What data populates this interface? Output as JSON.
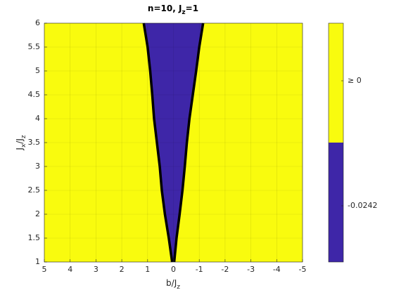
{
  "chart_data": {
    "type": "contour",
    "title": "n=10, J_z=1",
    "xlabel": "b/J_z",
    "ylabel": "J_x/J_z",
    "xlim": [
      5,
      -5
    ],
    "ylim": [
      1,
      6
    ],
    "xticks": [
      5,
      4,
      3,
      2,
      1,
      0,
      -1,
      -2,
      -3,
      -4,
      -5
    ],
    "yticks": [
      1,
      1.5,
      2,
      2.5,
      3,
      3.5,
      4,
      4.5,
      5,
      5.5,
      6
    ],
    "grid": true,
    "background_color": "#f9fb0e",
    "region_color": "#3e26a8",
    "boundary_color": "#000000",
    "boundary": {
      "y": [
        6,
        5.5,
        5,
        4.5,
        4,
        3.5,
        3,
        2.5,
        2,
        1.5,
        1
      ],
      "x_left": [
        1.15,
        1.0,
        0.9,
        0.82,
        0.75,
        0.64,
        0.53,
        0.45,
        0.33,
        0.18,
        0.05
      ],
      "x_right": [
        -1.15,
        -1.0,
        -0.88,
        -0.75,
        -0.62,
        -0.52,
        -0.44,
        -0.35,
        -0.24,
        -0.12,
        -0.03
      ]
    },
    "colorbar": {
      "colors": [
        "#3e26a8",
        "#f9fb0e"
      ],
      "ticks": [
        -0.0242,
        {
          "value": 0,
          "label": "≥ 0"
        }
      ]
    }
  }
}
